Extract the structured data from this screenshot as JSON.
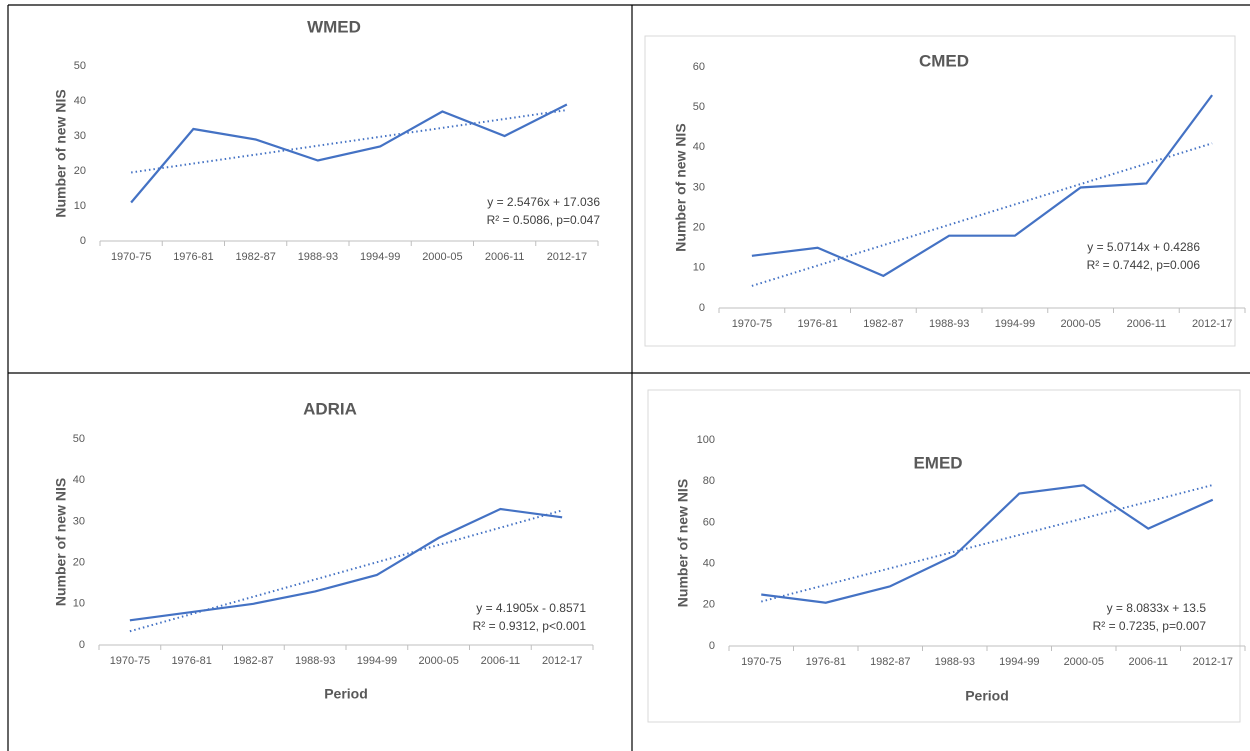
{
  "chart_data": [
    {
      "type": "line",
      "title": "WMED",
      "y_label": "Number of new NIS",
      "categories": [
        "1970-75",
        "1976-81",
        "1982-87",
        "1988-93",
        "1994-99",
        "2000-05",
        "2006-11",
        "2012-17"
      ],
      "values": [
        11,
        32,
        29,
        23,
        27,
        37,
        30,
        39
      ],
      "color": "#4472c4",
      "ylim": [
        0,
        50
      ],
      "yticks": [
        0,
        10,
        20,
        30,
        40,
        50
      ],
      "trendline": "linear",
      "annotations": [
        "y = 2.5476x + 17.036",
        "R² = 0.5086, p=0.047"
      ]
    },
    {
      "type": "line",
      "title": "CMED",
      "y_label": "Number of new NIS",
      "categories": [
        "1970-75",
        "1976-81",
        "1982-87",
        "1988-93",
        "1994-99",
        "2000-05",
        "2006-11",
        "2012-17"
      ],
      "values": [
        13,
        15,
        8,
        18,
        18,
        30,
        31,
        53
      ],
      "color": "#4472c4",
      "ylim": [
        0,
        60
      ],
      "yticks": [
        0,
        10,
        20,
        30,
        40,
        50,
        60
      ],
      "trendline": "linear",
      "annotations": [
        "y = 5.0714x + 0.4286",
        "R² = 0.7442, p=0.006"
      ]
    },
    {
      "type": "line",
      "title": "ADRIA",
      "y_label": "Number of new NIS",
      "x_label": "Period",
      "categories": [
        "1970-75",
        "1976-81",
        "1982-87",
        "1988-93",
        "1994-99",
        "2000-05",
        "2006-11",
        "2012-17"
      ],
      "values": [
        6,
        8,
        10,
        13,
        17,
        26,
        33,
        31
      ],
      "color": "#4472c4",
      "ylim": [
        0,
        50
      ],
      "yticks": [
        0,
        10,
        20,
        30,
        40,
        50
      ],
      "trendline": "linear",
      "annotations": [
        "y = 4.1905x - 0.8571",
        "R² = 0.9312, p<0.001"
      ]
    },
    {
      "type": "line",
      "title": "EMED",
      "y_label": "Number of new NIS",
      "x_label": "Period",
      "categories": [
        "1970-75",
        "1976-81",
        "1982-87",
        "1988-93",
        "1994-99",
        "2000-05",
        "2006-11",
        "2012-17"
      ],
      "values": [
        25,
        21,
        29,
        44,
        74,
        78,
        57,
        71
      ],
      "color": "#4472c4",
      "ylim": [
        0,
        100
      ],
      "yticks": [
        0,
        20,
        40,
        60,
        80,
        100
      ],
      "trendline": "linear",
      "annotations": [
        "y = 8.0833x + 13.5",
        "R² = 0.7235, p=0.007"
      ]
    }
  ]
}
